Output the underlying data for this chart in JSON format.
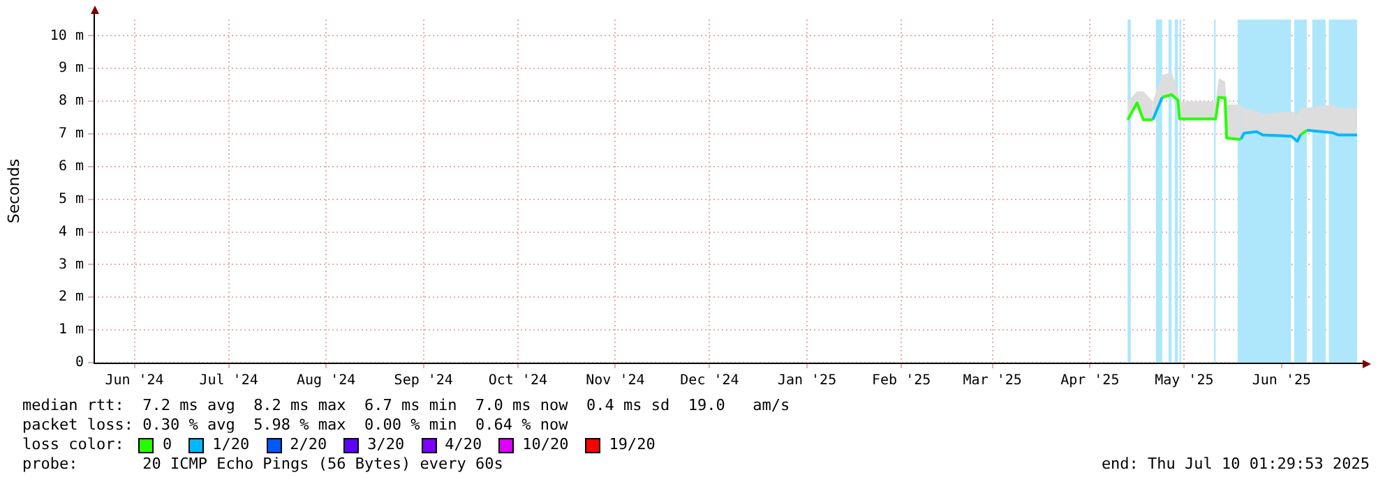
{
  "chart_data": {
    "type": "line",
    "ylabel": "Seconds",
    "legend_title": "loss color:",
    "legend": "bottom",
    "grid": true,
    "marker": "none",
    "line_style": "solid",
    "xlim": [
      "2024-06-03",
      "2025-07-10"
    ],
    "xticks": [
      {
        "value": "2024-06-16",
        "label": "Jun '24"
      },
      {
        "value": "2024-07-16",
        "label": "Jul '24"
      },
      {
        "value": "2024-08-16",
        "label": "Aug '24"
      },
      {
        "value": "2024-09-16",
        "label": "Sep '24"
      },
      {
        "value": "2024-10-16",
        "label": "Oct '24"
      },
      {
        "value": "2024-11-16",
        "label": "Nov '24"
      },
      {
        "value": "2024-12-16",
        "label": "Dec '24"
      },
      {
        "value": "2025-01-16",
        "label": "Jan '25"
      },
      {
        "value": "2025-02-15",
        "label": "Feb '25"
      },
      {
        "value": "2025-03-16",
        "label": "Mar '25"
      },
      {
        "value": "2025-04-16",
        "label": "Apr '25"
      },
      {
        "value": "2025-05-16",
        "label": "May '25"
      },
      {
        "value": "2025-06-16",
        "label": "Jun '25"
      }
    ],
    "ylim": [
      0,
      10.5
    ],
    "yticks": [
      0,
      {
        "value": 1,
        "label": "1 m"
      },
      {
        "value": 2,
        "label": "2 m"
      },
      {
        "value": 3,
        "label": "3 m"
      },
      {
        "value": 4,
        "label": "4 m"
      },
      {
        "value": 5,
        "label": "5 m"
      },
      {
        "value": 6,
        "label": "6 m"
      },
      {
        "value": 7,
        "label": "7 m"
      },
      {
        "value": 8,
        "label": "8 m"
      },
      {
        "value": 9,
        "label": "9 m"
      },
      {
        "value": 10,
        "label": "10 m"
      }
    ],
    "series": [
      {
        "color": "#26ff00",
        "x": [
          "2025-04-28",
          "2025-05-01",
          "2025-05-03",
          "2025-05-06"
        ],
        "values": [
          7.43,
          7.95,
          7.43,
          7.43
        ],
        "lower": [
          7.43,
          7.95,
          7.43,
          7.43
        ],
        "upper": [
          8.0,
          8.3,
          8.3,
          8.0
        ]
      },
      {
        "color": "#00b8ff",
        "x": [
          "2025-05-06",
          "2025-05-09"
        ],
        "values": [
          7.43,
          8.12
        ],
        "lower": [
          7.43,
          8.12
        ],
        "upper": [
          8.0,
          8.8
        ]
      },
      {
        "color": "#26ff00",
        "x": [
          "2025-05-09",
          "2025-05-12",
          "2025-05-14",
          "2025-05-14T12:00",
          "2025-05-26",
          "2025-05-27",
          "2025-05-29",
          "2025-05-29T12:00",
          "2025-06-03"
        ],
        "values": [
          8.12,
          8.2,
          8.03,
          7.46,
          7.46,
          8.12,
          8.1,
          6.87,
          6.83
        ],
        "lower": [
          8.12,
          8.2,
          8.03,
          7.46,
          7.46,
          8.12,
          8.1,
          6.87,
          6.83
        ],
        "upper": [
          8.8,
          8.9,
          8.3,
          8.0,
          8.0,
          8.7,
          8.6,
          7.9,
          7.9
        ]
      },
      {
        "color": "#00b8ff",
        "x": [
          "2025-06-03",
          "2025-06-04",
          "2025-06-08",
          "2025-06-10",
          "2025-06-19",
          "2025-06-21",
          "2025-06-22"
        ],
        "values": [
          6.83,
          7.02,
          7.07,
          6.97,
          6.93,
          6.78,
          6.97
        ],
        "lower": [
          6.83,
          7.02,
          7.07,
          6.97,
          6.93,
          6.78,
          6.97
        ],
        "upper": [
          7.9,
          7.8,
          7.7,
          7.6,
          7.7,
          7.6,
          7.8
        ]
      },
      {
        "color": "#26ff00",
        "x": [
          "2025-06-22",
          "2025-06-24"
        ],
        "values": [
          6.97,
          7.11
        ],
        "lower": [
          6.97,
          7.11
        ],
        "upper": [
          7.8,
          7.8
        ]
      },
      {
        "color": "#00b8ff",
        "x": [
          "2025-06-24",
          "2025-07-02",
          "2025-07-04",
          "2025-07-10"
        ],
        "values": [
          7.11,
          7.04,
          6.97,
          6.97
        ],
        "lower": [
          7.11,
          7.04,
          6.97,
          6.97
        ],
        "upper": [
          7.8,
          7.9,
          7.8,
          7.8
        ]
      },
      {
        "name": "0",
        "color": "#26ff00"
      },
      {
        "name": "1/20",
        "color": "#00b8ff"
      },
      {
        "name": "2/20",
        "color": "#0059ff"
      },
      {
        "name": "3/20",
        "color": "#5e00ff"
      },
      {
        "name": "4/20",
        "color": "#7e00ff"
      },
      {
        "name": "10/20",
        "color": "#dd00ff"
      },
      {
        "name": "19/20",
        "color": "#ff0000"
      }
    ],
    "bands": [
      {
        "axis": "x",
        "from": "2025-04-28",
        "to": "2025-04-29",
        "color": "#aee7fc"
      },
      {
        "axis": "x",
        "from": "2025-05-07",
        "to": "2025-05-09",
        "color": "#aee7fc"
      },
      {
        "axis": "x",
        "from": "2025-05-11",
        "to": "2025-05-12",
        "color": "#aee7fc"
      },
      {
        "axis": "x",
        "from": "2025-05-13",
        "to": "2025-05-14",
        "color": "#aee7fc"
      },
      {
        "axis": "x",
        "from": "2025-05-14T12:00",
        "to": "2025-05-15",
        "color": "#aee7fc"
      },
      {
        "axis": "x",
        "from": "2025-05-25T12:00",
        "to": "2025-05-26",
        "color": "#aee7fc"
      },
      {
        "axis": "x",
        "from": "2025-06-02",
        "to": "2025-06-19",
        "color": "#aee7fc"
      },
      {
        "axis": "x",
        "from": "2025-06-20",
        "to": "2025-06-24",
        "color": "#aee7fc"
      },
      {
        "axis": "x",
        "from": "2025-06-25T18:00",
        "to": "2025-06-30",
        "color": "#aee7fc"
      },
      {
        "axis": "x",
        "from": "2025-07-01",
        "to": "2025-07-10",
        "color": "#aee7fc"
      }
    ],
    "annotations": [
      "median rtt:  7.2 ms avg  8.2 ms max  6.7 ms min  7.0 ms now  0.4 ms sd  19.0   am/s",
      "packet loss: 0.30 % avg  5.98 % max  0.00 % min  0.64 % now",
      "probe:       20 ICMP Echo Pings (56 Bytes) every 60s",
      "end: Thu Jul 10 01:29:53 2025"
    ]
  }
}
